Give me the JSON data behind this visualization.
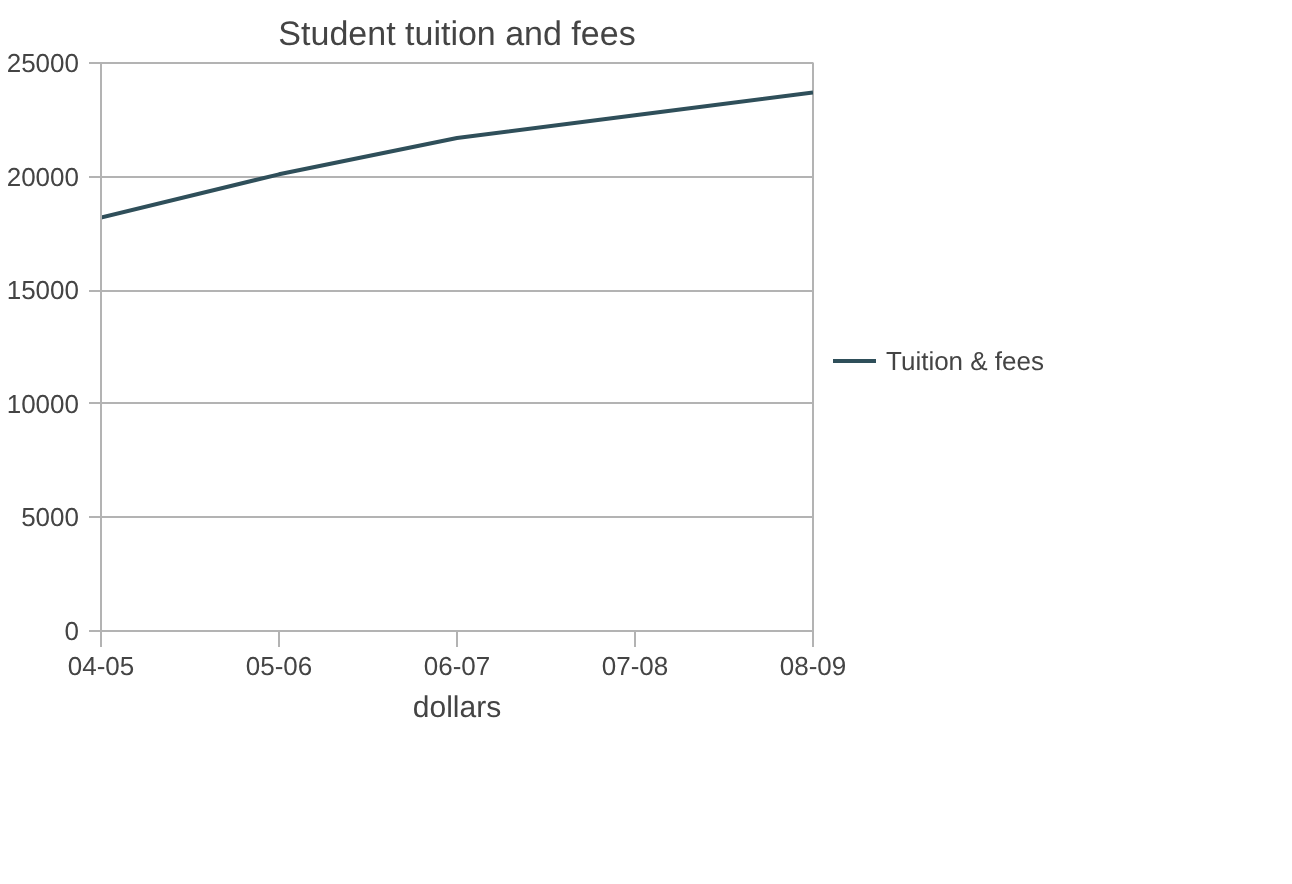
{
  "chart_data": {
    "type": "line",
    "title": "Student tuition and fees",
    "xlabel": "dollars",
    "categories": [
      "04-05",
      "05-06",
      "06-07",
      "07-08",
      "08-09"
    ],
    "series": [
      {
        "name": "Tuition & fees",
        "color": "#2f4f5a",
        "values": [
          18200,
          20100,
          21700,
          22700,
          23700
        ]
      }
    ],
    "ylim": [
      0,
      25000
    ],
    "yticks": [
      0,
      5000,
      10000,
      15000,
      20000,
      25000
    ],
    "grid": "y",
    "legend": "right",
    "marker": "none",
    "line_style": "solid"
  }
}
